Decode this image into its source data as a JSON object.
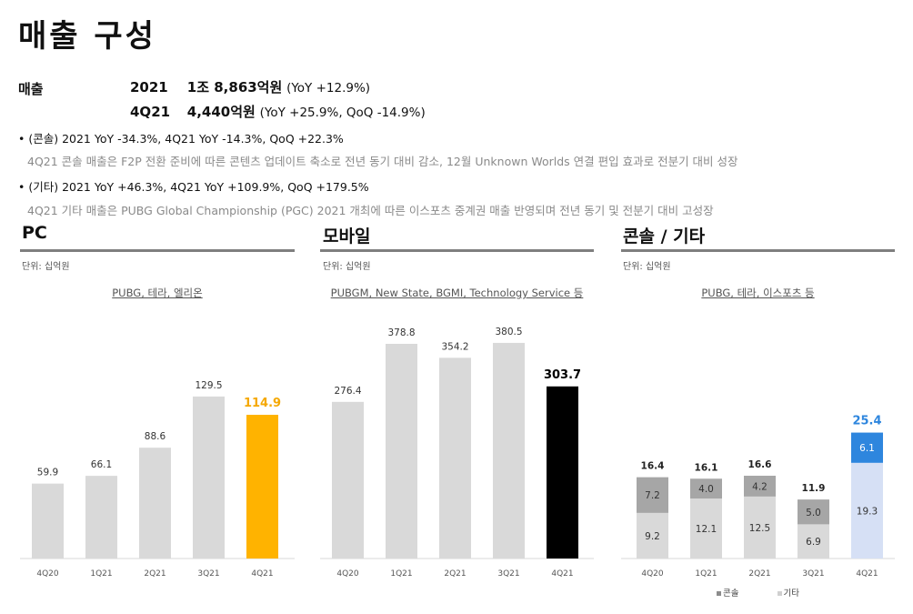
{
  "title": "매출 구성",
  "revenue": {
    "label": "매출",
    "rows": [
      {
        "period": "2021",
        "amount": "1조 8,863억원",
        "comparison": "(YoY +12.9%)"
      },
      {
        "period": "4Q21",
        "amount": "4,440억원",
        "comparison": "(YoY +25.9%, QoQ -14.9%)"
      }
    ]
  },
  "notes": [
    {
      "bullet": "• (콘솔) 2021 YoY -34.3%, 4Q21 YoY -14.3%, QoQ +22.3%",
      "desc": "4Q21 콘솔 매출은 F2P 전환 준비에 따른 콘텐츠 업데이트 축소로 전년 동기 대비 감소, 12월 Unknown Worlds 연결 편입 효과로 전분기 대비 성장"
    },
    {
      "bullet": "• (기타) 2021 YoY +46.3%, 4Q21 YoY +109.9%, QoQ +179.5%",
      "desc": "4Q21 기타 매출은 PUBG Global Championship (PGC) 2021 개최에 따른 이스포츠 중계권 매출 반영되며 전년 동기 및 전분기 대비 고성장"
    }
  ],
  "colors": {
    "bar_grey": "#d9d9d9",
    "pc_highlight": "#ffb300",
    "mobile_highlight": "#000000",
    "console_stack": "#a6a6a6",
    "other_stack": "#d9d9d9",
    "console_4q21": "#2e86de",
    "other_4q21": "#d6e0f5",
    "highlight_label_pc": "#f5a800",
    "highlight_label_console": "#2e86de",
    "section_line": "#7f7f7f"
  },
  "sections": {
    "pc": {
      "title": "PC",
      "unit": "단위: 십억원",
      "subtitle": "PUBG, 테라, 엘리온"
    },
    "mobile": {
      "title": "모바일",
      "unit": "단위: 십억원",
      "subtitle": "PUBGM, New State, BGMI, Technology Service 등"
    },
    "console": {
      "title": "콘솔 / 기타",
      "unit": "단위: 십억원",
      "subtitle": "PUBG, 테라, 이스포츠 등"
    }
  },
  "legend": {
    "console": "콘솔",
    "other": "기타"
  },
  "chart_data": [
    {
      "type": "bar",
      "title": "PC",
      "categories": [
        "4Q20",
        "1Q21",
        "2Q21",
        "3Q21",
        "4Q21"
      ],
      "values": [
        59.9,
        66.1,
        88.6,
        129.5,
        114.9
      ],
      "labels": [
        "59.9",
        "66.1",
        "88.6",
        "129.5",
        "114.9"
      ],
      "highlight_index": 4
    },
    {
      "type": "bar",
      "title": "모바일",
      "categories": [
        "4Q20",
        "1Q21",
        "2Q21",
        "3Q21",
        "4Q21"
      ],
      "values": [
        276.4,
        378.8,
        354.2,
        380.5,
        303.7
      ],
      "labels": [
        "276.4",
        "378.8",
        "354.2",
        "380.5",
        "303.7"
      ],
      "highlight_index": 4
    },
    {
      "type": "bar",
      "title": "콘솔 / 기타",
      "stacked": true,
      "categories": [
        "4Q20",
        "1Q21",
        "2Q21",
        "3Q21",
        "4Q21"
      ],
      "series": [
        {
          "name": "콘솔",
          "values": [
            7.2,
            4.0,
            4.2,
            5.0,
            6.1
          ],
          "labels": [
            "7.2",
            "4.0",
            "4.2",
            "5.0",
            "6.1"
          ]
        },
        {
          "name": "기타",
          "values": [
            9.2,
            12.1,
            12.5,
            6.9,
            19.3
          ],
          "labels": [
            "9.2",
            "12.1",
            "12.5",
            "6.9",
            "19.3"
          ]
        }
      ],
      "totals": [
        16.4,
        16.1,
        16.6,
        11.9,
        25.4
      ],
      "total_labels": [
        "16.4",
        "16.1",
        "16.6",
        "11.9",
        "25.4"
      ],
      "highlight_index": 4,
      "legend": "bottom"
    }
  ]
}
